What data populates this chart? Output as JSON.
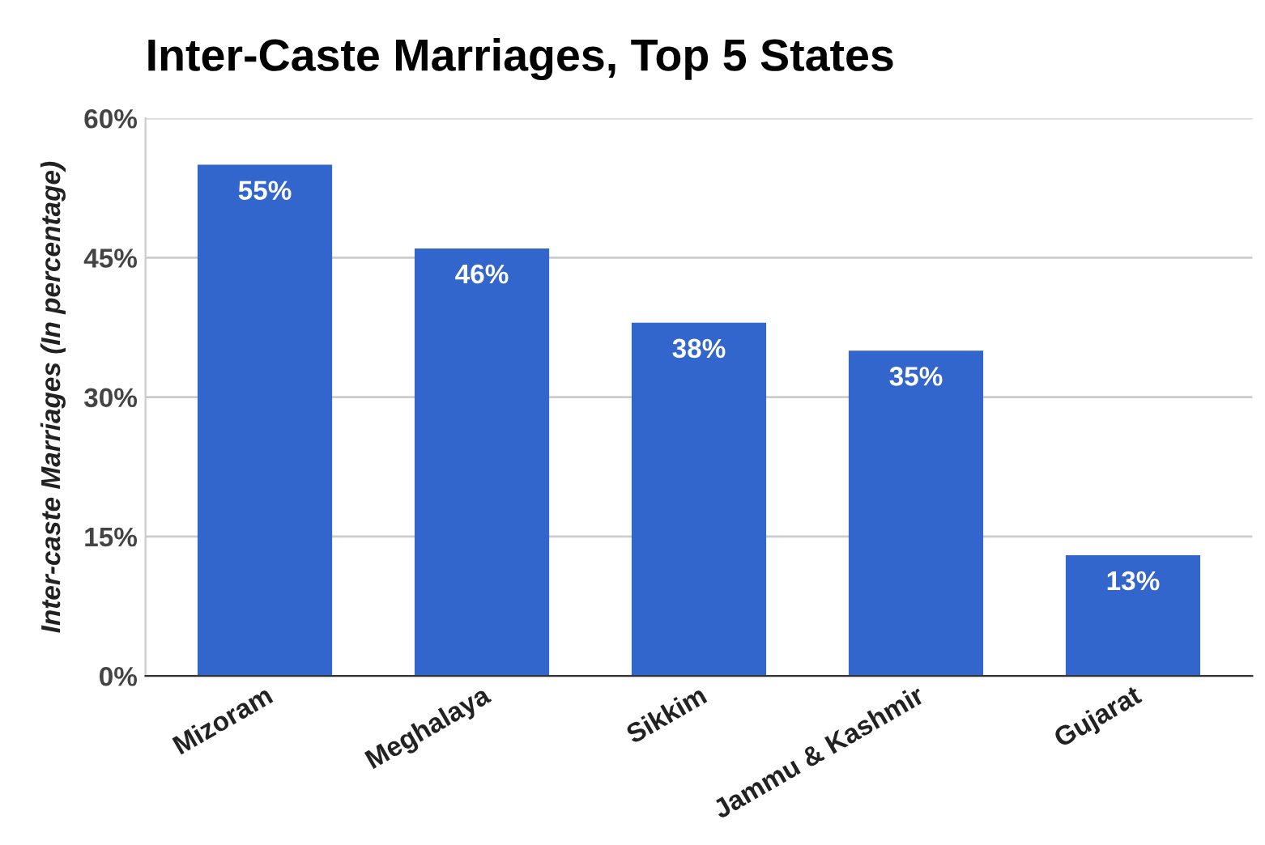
{
  "chart_data": {
    "type": "bar",
    "title": "Inter-Caste Marriages, Top 5 States",
    "ylabel": "Inter-caste Marriages (In percentage)",
    "categories": [
      "Mizoram",
      "Meghalaya",
      "Sikkim",
      "Jammu & Kashmir",
      "Gujarat"
    ],
    "values": [
      55,
      46,
      38,
      35,
      13
    ],
    "value_labels": [
      "55%",
      "46%",
      "38%",
      "35%",
      "13%"
    ],
    "color": "#3366cc",
    "ylim": [
      0,
      60
    ],
    "yticks": [
      {
        "value": 0,
        "label": "0%"
      },
      {
        "value": 15,
        "label": "15%"
      },
      {
        "value": 30,
        "label": "30%"
      },
      {
        "value": 45,
        "label": "45%"
      },
      {
        "value": 60,
        "label": "60%"
      }
    ],
    "grid": "y"
  }
}
